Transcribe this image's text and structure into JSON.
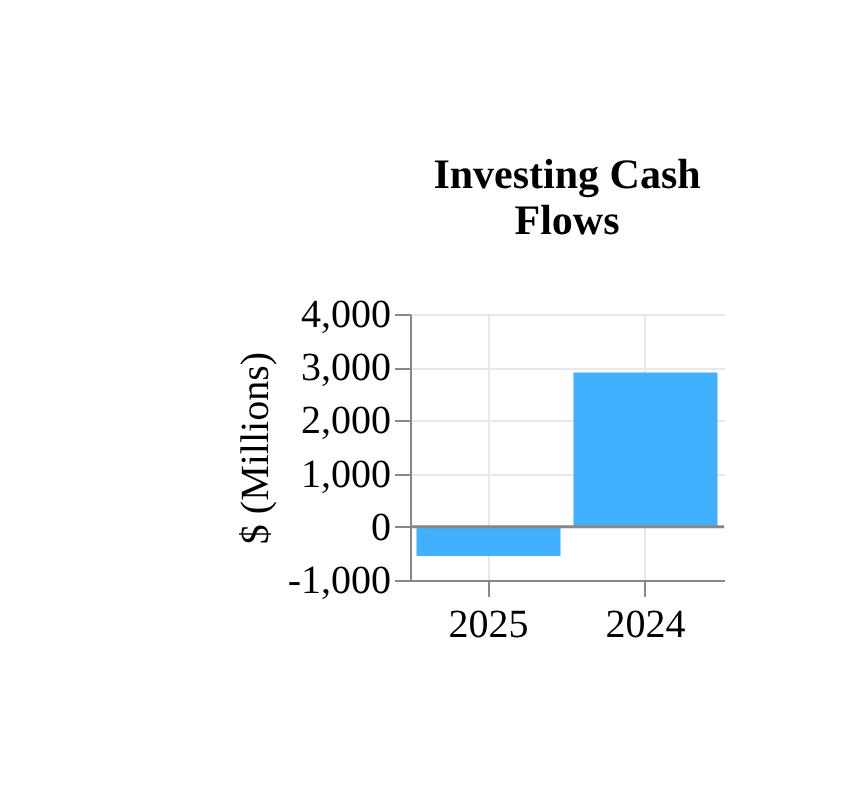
{
  "chart_data": {
    "type": "bar",
    "title": "Investing Cash Flows",
    "ylabel": "$ (Millions)",
    "categories": [
      "2025",
      "2024"
    ],
    "values": [
      -550,
      2900
    ],
    "color": "#40b0ff",
    "ylim": [
      -1000,
      4000
    ],
    "yticks": [
      {
        "value": -1000,
        "label": "-1,000"
      },
      0,
      {
        "value": 1000,
        "label": "1,000"
      },
      {
        "value": 2000,
        "label": "2,000"
      },
      {
        "value": 3000,
        "label": "3,000"
      },
      {
        "value": 4000,
        "label": "4,000"
      }
    ],
    "grid": true,
    "ref_lines": [
      {
        "axis": "y",
        "value": 0,
        "color": "#888888"
      }
    ]
  }
}
